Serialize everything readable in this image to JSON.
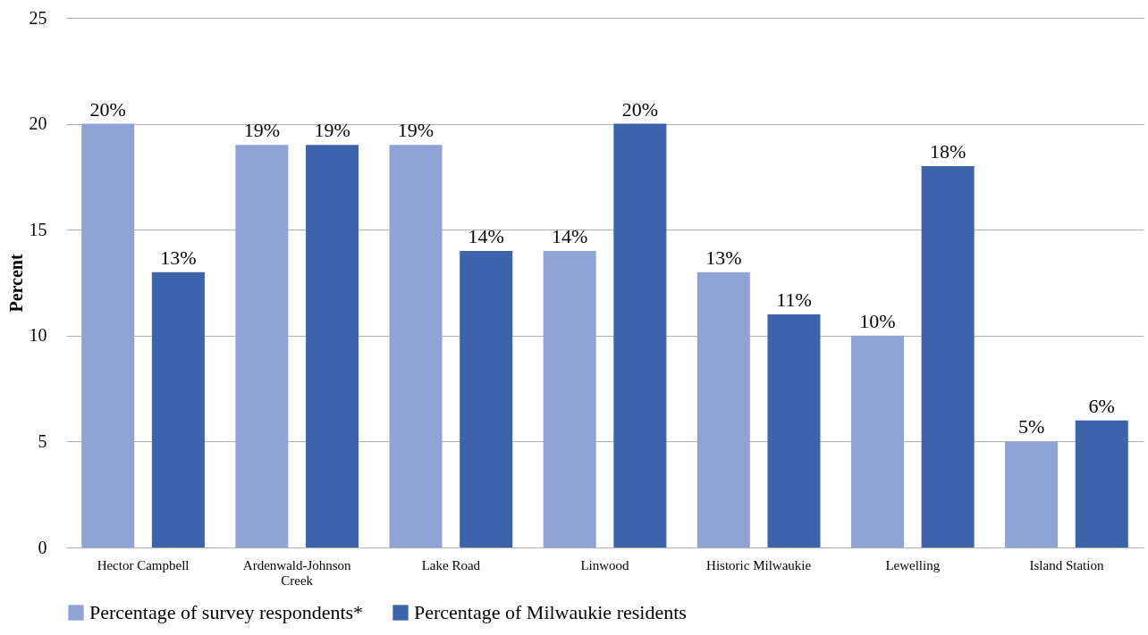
{
  "chart_data": {
    "type": "bar",
    "ylabel": "Percent",
    "categories": [
      "Hector Campbell",
      "Ardenwald-Johnson Creek",
      "Lake Road",
      "Linwood",
      "Historic Milwaukie",
      "Lewelling",
      "Island Station"
    ],
    "series": [
      {
        "name": "Percentage of survey respondents*",
        "color": "#8fa4d4",
        "values": [
          20,
          19,
          19,
          14,
          13,
          10,
          5
        ],
        "value_labels": [
          "20%",
          "19%",
          "19%",
          "14%",
          "13%",
          "10%",
          "5%"
        ]
      },
      {
        "name": "Percentage of Milwaukie residents",
        "color": "#3c63ab",
        "values": [
          13,
          19,
          14,
          20,
          11,
          18,
          6
        ],
        "value_labels": [
          "13%",
          "19%",
          "14%",
          "20%",
          "11%",
          "18%",
          "6%"
        ]
      }
    ],
    "ylim": [
      0,
      25
    ],
    "yticks": [
      0,
      5,
      10,
      15,
      20,
      25
    ],
    "grid": "y",
    "legend": "bottom"
  }
}
